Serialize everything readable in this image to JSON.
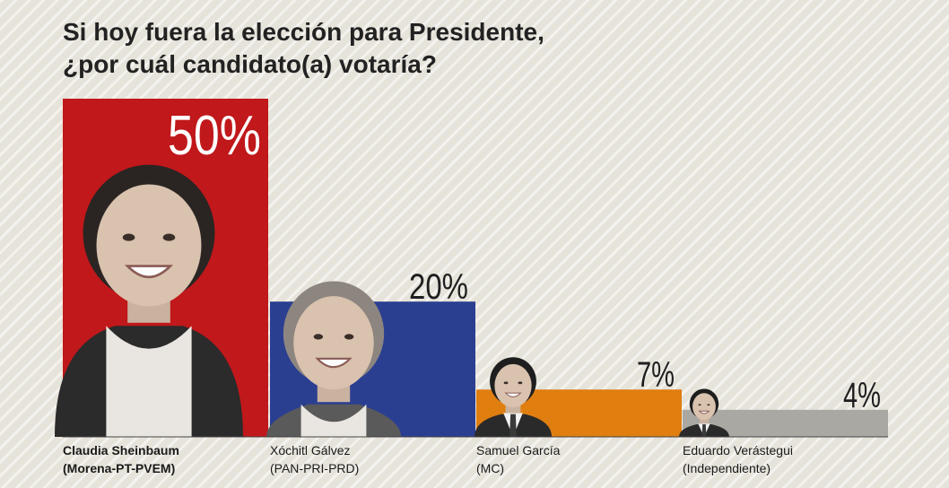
{
  "header": {
    "title_line1": "Si hoy fuera la elección para Presidente,",
    "title_line2": "¿por cuál candidato(a) votaría?"
  },
  "chart_data": {
    "type": "bar",
    "title": "Si hoy fuera la elección para Presidente, ¿por cuál candidato(a) votaría?",
    "categories": [
      "Claudia Sheinbaum (Morena-PT-PVEM)",
      "Xóchitl Gálvez (PAN-PRI-PRD)",
      "Samuel García (MC)",
      "Eduardo Verástegui (Independiente)"
    ],
    "values": [
      50,
      20,
      7,
      4
    ],
    "value_labels": [
      "50%",
      "20%",
      "7%",
      "4%"
    ],
    "unit": "%",
    "ylim": [
      0,
      50
    ],
    "grid": false,
    "legend": "none",
    "bar_colors": [
      "#c0181b",
      "#2b3f91",
      "#e07e10",
      "#a9a8a3"
    ],
    "candidates": [
      {
        "name": "Claudia Sheinbaum",
        "party": "(Morena-PT-PVEM)",
        "photo_icon": "candidate-portrait-icon"
      },
      {
        "name": "Xóchitl Gálvez",
        "party": "(PAN-PRI-PRD)",
        "photo_icon": "candidate-portrait-icon"
      },
      {
        "name": "Samuel García",
        "party": "(MC)",
        "photo_icon": "candidate-portrait-icon"
      },
      {
        "name": "Eduardo Verástegui",
        "party": "(Independiente)",
        "photo_icon": "candidate-portrait-icon"
      }
    ]
  }
}
